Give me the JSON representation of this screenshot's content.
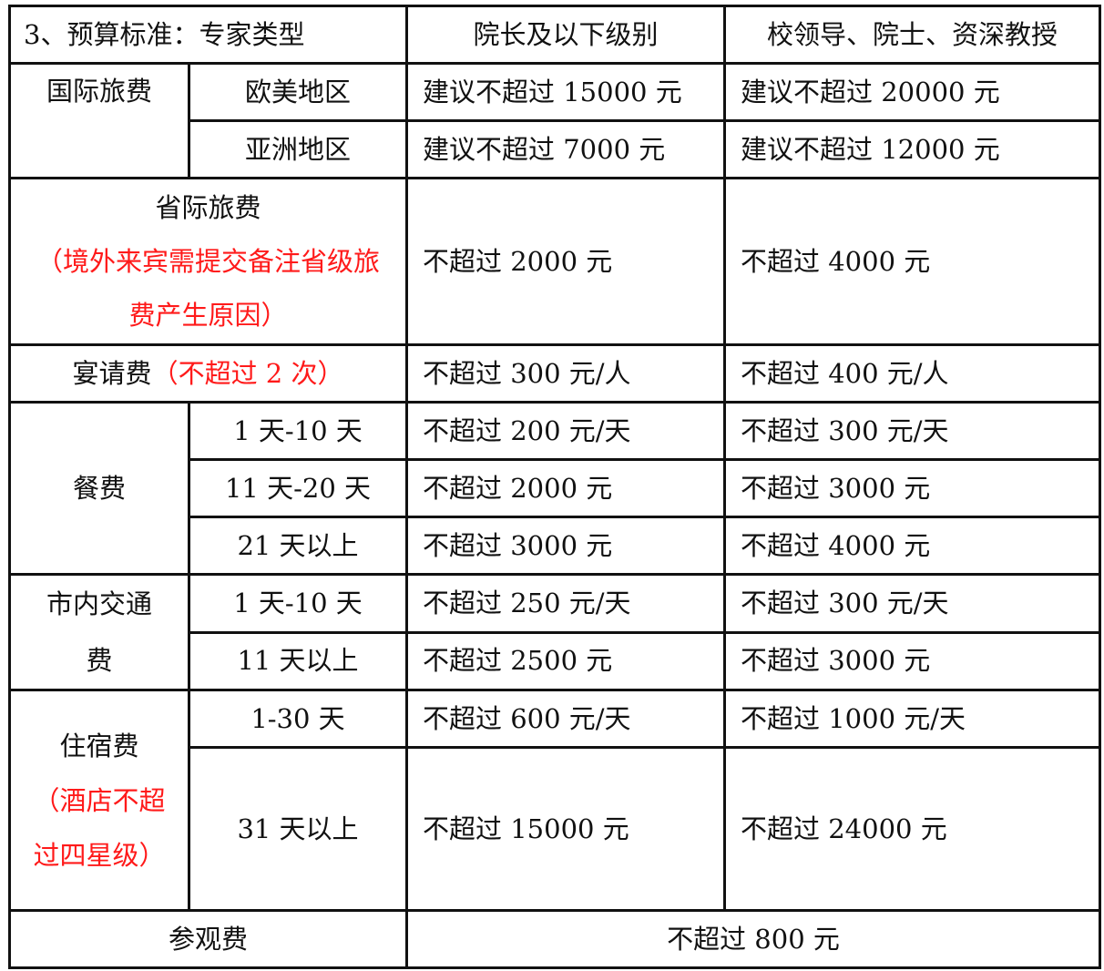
{
  "header": {
    "type_label": "3、预算标准：专家类型",
    "col_a": "院长及以下级别",
    "col_b": "校领导、院士、资深教授"
  },
  "international": {
    "label": "国际旅费",
    "rows": [
      {
        "sub": "欧美地区",
        "a": "建议不超过 15000 元",
        "b": "建议不超过 20000 元"
      },
      {
        "sub": "亚洲地区",
        "a": "建议不超过 7000 元",
        "b": "建议不超过 12000 元"
      }
    ]
  },
  "interprovincial": {
    "label": "省际旅费",
    "note": "（境外来宾需提交备注省级旅费产生原因）",
    "a": "不超过 2000 元",
    "b": "不超过 4000 元"
  },
  "banquet": {
    "label": "宴请费",
    "note": "（不超过 2 次）",
    "a": "不超过 300 元/人",
    "b": "不超过 400 元/人"
  },
  "meals": {
    "label": "餐费",
    "rows": [
      {
        "sub": "1 天-10 天",
        "a": "不超过 200 元/天",
        "b": "不超过 300 元/天"
      },
      {
        "sub": "11 天-20 天",
        "a": "不超过 2000 元",
        "b": "不超过 3000 元"
      },
      {
        "sub": "21 天以上",
        "a": "不超过 3000 元",
        "b": "不超过 4000 元"
      }
    ]
  },
  "local_transport": {
    "label": "市内交通费",
    "rows": [
      {
        "sub": "1 天-10 天",
        "a": "不超过 250 元/天",
        "b": "不超过 300 元/天"
      },
      {
        "sub": "11 天以上",
        "a": "不超过 2500 元",
        "b": "不超过 3000 元"
      }
    ]
  },
  "lodging": {
    "label": "住宿费",
    "note": "（酒店不超过四星级）",
    "rows": [
      {
        "sub": "1-30 天",
        "a": "不超过 600 元/天",
        "b": "不超过 1000 元/天"
      },
      {
        "sub": "31 天以上",
        "a": "不超过 15000 元",
        "b": "不超过 24000 元"
      }
    ]
  },
  "visit": {
    "label": "参观费",
    "value": "不超过 800 元"
  },
  "colors": {
    "note": "#ff1a1a",
    "text": "#111111",
    "border": "#111111"
  }
}
